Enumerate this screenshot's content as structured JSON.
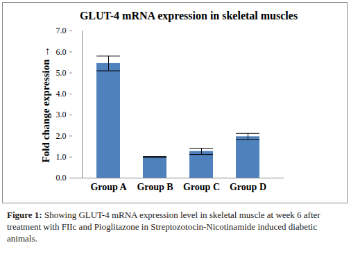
{
  "chart_data": {
    "type": "bar",
    "title": "GLUT-4  mRNA  expression in skeletal muscles",
    "y_label": "Fold change expression",
    "categories": [
      "Group A",
      "Group B",
      "Group C",
      "Group D"
    ],
    "values": [
      5.45,
      1.0,
      1.27,
      1.97
    ],
    "errors": [
      0.35,
      0.02,
      0.15,
      0.15
    ],
    "color": "#4f81bd",
    "ylim": [
      0,
      7
    ],
    "yticks": [
      0,
      1,
      2,
      3,
      4,
      5,
      6,
      7
    ],
    "grid": false,
    "caption_label": "Figure 1:",
    "caption": "Showing GLUT-4 mRNA expression level in skeletal muscle at week 6 after treatment with FIIc and Pioglitazone in Streptozotocin-Nicotinamide induced diabetic animals."
  }
}
